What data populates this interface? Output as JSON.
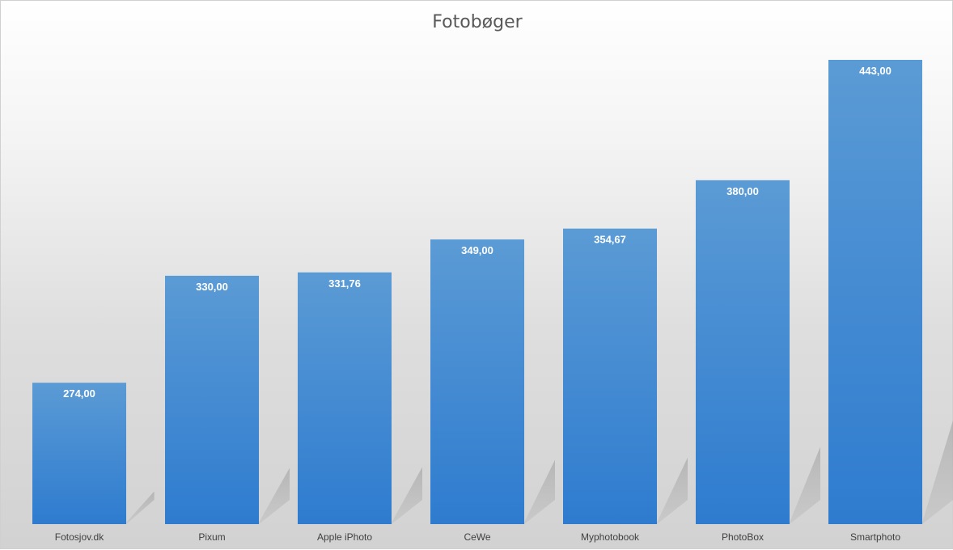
{
  "chart_data": {
    "type": "bar",
    "title": "Fotobøger",
    "xlabel": "",
    "ylabel": "",
    "categories": [
      "Fotosjov.dk",
      "Pixum",
      "Apple iPhoto",
      "CeWe",
      "Myphotobook",
      "PhotoBox",
      "Smartphoto"
    ],
    "values": [
      274.0,
      330.0,
      331.76,
      349.0,
      354.67,
      380.0,
      443.0
    ],
    "value_labels": [
      "274,00",
      "330,00",
      "331,76",
      "349,00",
      "354,67",
      "380,00",
      "443,00"
    ],
    "ylim": [
      200,
      450
    ],
    "grid": false,
    "legend": "none",
    "colors": {
      "bar_top": "#5b9bd5",
      "bar_bottom": "#2e7bcf",
      "label": "#ffffff",
      "title": "#595959",
      "ticks": "#404040"
    }
  }
}
